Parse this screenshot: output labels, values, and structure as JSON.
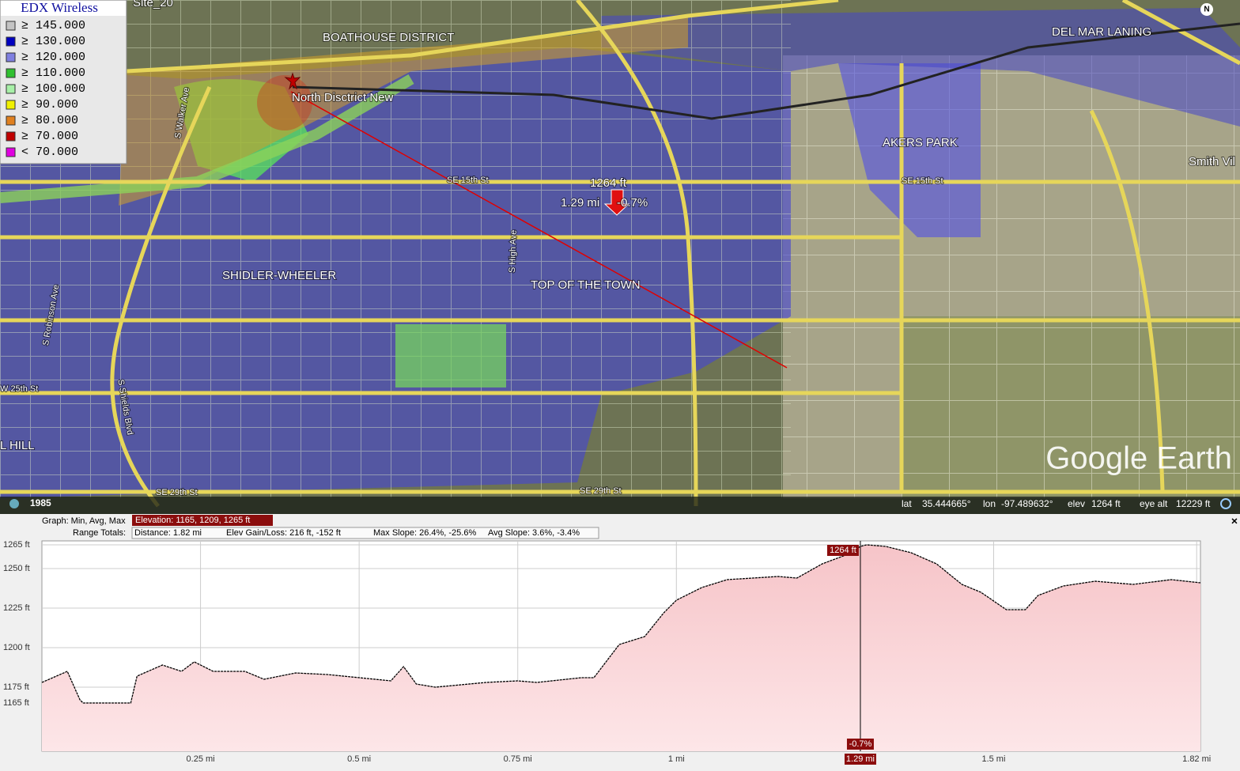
{
  "legend": {
    "title": "EDX Wireless",
    "items": [
      {
        "label": "≥ 145.000",
        "color": "#c4c4c4"
      },
      {
        "label": "≥ 130.000",
        "color": "#0000c0"
      },
      {
        "label": "≥ 120.000",
        "color": "#7f7fe0"
      },
      {
        "label": "≥ 110.000",
        "color": "#30c030"
      },
      {
        "label": "≥ 100.000",
        "color": "#a8f0a8"
      },
      {
        "label": "≥ 90.000",
        "color": "#f0f000"
      },
      {
        "label": "≥ 80.000",
        "color": "#e08020"
      },
      {
        "label": "≥ 70.000",
        "color": "#c00000"
      },
      {
        "label": "< 70.000",
        "color": "#e000e0"
      }
    ]
  },
  "map": {
    "labels": [
      "Site_20",
      "BOATHOUSE DISTRICT",
      "North Disctrict New",
      "DEL MAR LANING",
      "AKERS PARK",
      "Smith Vil",
      "SE 15th St",
      "SE 15th St",
      "SHIDLER-WHEELER",
      "TOP OF THE TOWN",
      "W 25th St",
      "L HILL",
      "SE 29th St",
      "SE 29th St",
      "S Robinson Ave",
      "S Shields Blvd",
      "S High Ave",
      "S Walker Ave",
      "N"
    ],
    "marker": {
      "elevation": "1264 ft",
      "distance": "1.29 mi",
      "slope": "-0.7%"
    },
    "watermark": "Google Earth"
  },
  "status_bar": {
    "year": "1985",
    "lat_label": "lat",
    "lat": "35.444665°",
    "lon_label": "lon",
    "lon": "-97.489632°",
    "elev_label": "elev",
    "elev": "1264 ft",
    "eye_alt_label": "eye alt",
    "eye_alt": "12229 ft"
  },
  "profile_header": {
    "graph_label": "Graph: Min, Avg, Max",
    "elevation": "Elevation: 1165, 1209, 1265 ft",
    "range_label": "Range Totals:",
    "distance": "Distance: 1.82 mi",
    "gain_loss": "Elev Gain/Loss: 216 ft, -152 ft",
    "max_slope": "Max Slope: 26.4%, -25.6%",
    "avg_slope": "Avg Slope: 3.6%, -3.4%"
  },
  "chart_data": {
    "type": "area",
    "x": [
      0,
      0.04,
      0.06,
      0.065,
      0.14,
      0.15,
      0.19,
      0.22,
      0.24,
      0.27,
      0.32,
      0.35,
      0.4,
      0.45,
      0.5,
      0.55,
      0.57,
      0.59,
      0.62,
      0.7,
      0.75,
      0.78,
      0.85,
      0.87,
      0.91,
      0.95,
      0.98,
      1.0,
      1.04,
      1.08,
      1.12,
      1.16,
      1.19,
      1.23,
      1.27,
      1.29,
      1.3,
      1.33,
      1.37,
      1.41,
      1.45,
      1.48,
      1.52,
      1.55,
      1.57,
      1.61,
      1.66,
      1.72,
      1.78,
      1.826
    ],
    "values": [
      1178,
      1185,
      1167,
      1165,
      1165,
      1182,
      1189,
      1185,
      1191,
      1185,
      1185,
      1180,
      1184,
      1183,
      1181,
      1179,
      1188,
      1177,
      1175,
      1178,
      1179,
      1178,
      1181,
      1181,
      1202,
      1207,
      1222,
      1230,
      1238,
      1243,
      1244,
      1245,
      1244,
      1253,
      1259,
      1264,
      1265,
      1264,
      1260,
      1253,
      1240,
      1235,
      1224,
      1224,
      1233,
      1239,
      1242,
      1240,
      1243,
      1241
    ],
    "color": "#000000",
    "fill": "#f6c4c8",
    "xlim": [
      0,
      1.826
    ],
    "ylim": [
      1134.5,
      1267.5
    ],
    "xticks": [
      {
        "value": 0.25,
        "label": "0.25 mi"
      },
      {
        "value": 0.5,
        "label": "0.5 mi"
      },
      {
        "value": 0.75,
        "label": "0.75 mi"
      },
      {
        "value": 1,
        "label": "1 mi"
      },
      {
        "value": 1.5,
        "label": "1.5 mi"
      },
      {
        "value": 1.82,
        "label": "1.82 mi"
      }
    ],
    "yticks": [
      {
        "value": 1165,
        "label": "1165 ft"
      },
      {
        "value": 1175,
        "label": "1175 ft"
      },
      {
        "value": 1200,
        "label": "1200 ft"
      },
      {
        "value": 1225,
        "label": "1225 ft"
      },
      {
        "value": 1250,
        "label": "1250 ft"
      },
      {
        "value": 1265,
        "label": "1265 ft"
      }
    ],
    "grid": true,
    "cursor": {
      "x": {
        "value": 1.29,
        "label": "1.29 mi"
      },
      "elevation": {
        "value": 1264,
        "label": "1264 ft"
      },
      "slope": "-0.7%"
    }
  }
}
